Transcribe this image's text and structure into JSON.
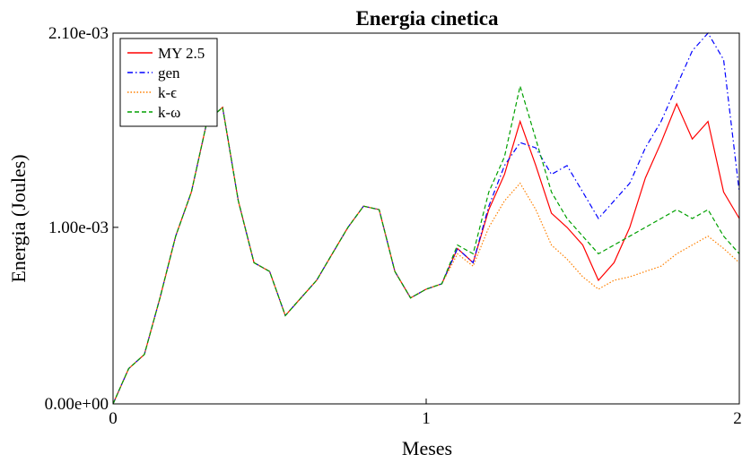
{
  "chart_data": {
    "type": "line",
    "title": "Energia cinetica",
    "xlabel": "Meses",
    "ylabel": "Energia (Joules)",
    "xlim": [
      0,
      2
    ],
    "ylim": [
      0,
      0.0021
    ],
    "xticks": [
      0,
      1,
      2
    ],
    "xtick_labels": [
      "0",
      "1",
      "2"
    ],
    "yticks": [
      0,
      0.001,
      0.0021
    ],
    "ytick_labels": [
      "0.00e+00",
      "1.00e-03",
      "2.10e-03"
    ],
    "grid": false,
    "legend_position": "top-left",
    "series": [
      {
        "name": "MY 2.5",
        "color": "#ff0000",
        "dash": "solid",
        "x": [
          0,
          0.05,
          0.1,
          0.15,
          0.2,
          0.25,
          0.3,
          0.35,
          0.4,
          0.45,
          0.5,
          0.55,
          0.6,
          0.65,
          0.7,
          0.75,
          0.8,
          0.85,
          0.9,
          0.95,
          1.0,
          1.05,
          1.1,
          1.15,
          1.2,
          1.25,
          1.3,
          1.35,
          1.4,
          1.45,
          1.5,
          1.55,
          1.6,
          1.65,
          1.7,
          1.75,
          1.8,
          1.85,
          1.9,
          1.95,
          2.0
        ],
        "y": [
          0.0,
          0.0002,
          0.00028,
          0.0006,
          0.00095,
          0.0012,
          0.0016,
          0.00168,
          0.00115,
          0.0008,
          0.00075,
          0.0005,
          0.0006,
          0.0007,
          0.00085,
          0.001,
          0.00112,
          0.0011,
          0.00075,
          0.0006,
          0.00065,
          0.00068,
          0.00088,
          0.0008,
          0.0011,
          0.0013,
          0.0016,
          0.00135,
          0.00108,
          0.001,
          0.0009,
          0.0007,
          0.0008,
          0.001,
          0.00128,
          0.00148,
          0.0017,
          0.0015,
          0.0016,
          0.0012,
          0.00105
        ]
      },
      {
        "name": "gen",
        "color": "#0000ff",
        "dash": "dashdot",
        "x": [
          0,
          0.05,
          0.1,
          0.15,
          0.2,
          0.25,
          0.3,
          0.35,
          0.4,
          0.45,
          0.5,
          0.55,
          0.6,
          0.65,
          0.7,
          0.75,
          0.8,
          0.85,
          0.9,
          0.95,
          1.0,
          1.05,
          1.1,
          1.15,
          1.2,
          1.25,
          1.3,
          1.35,
          1.4,
          1.45,
          1.5,
          1.55,
          1.6,
          1.65,
          1.7,
          1.75,
          1.8,
          1.85,
          1.9,
          1.95,
          2.0
        ],
        "y": [
          0.0,
          0.0002,
          0.00028,
          0.0006,
          0.00095,
          0.0012,
          0.0016,
          0.00168,
          0.00115,
          0.0008,
          0.00075,
          0.0005,
          0.0006,
          0.0007,
          0.00085,
          0.001,
          0.00112,
          0.0011,
          0.00075,
          0.0006,
          0.00065,
          0.00068,
          0.00088,
          0.0008,
          0.00112,
          0.00135,
          0.00148,
          0.00145,
          0.0013,
          0.00135,
          0.0012,
          0.00105,
          0.00115,
          0.00125,
          0.00145,
          0.0016,
          0.0018,
          0.002,
          0.0021,
          0.00195,
          0.0012
        ]
      },
      {
        "name": "k-ϵ",
        "color": "#ff8000",
        "dash": "dotted",
        "x": [
          0,
          0.05,
          0.1,
          0.15,
          0.2,
          0.25,
          0.3,
          0.35,
          0.4,
          0.45,
          0.5,
          0.55,
          0.6,
          0.65,
          0.7,
          0.75,
          0.8,
          0.85,
          0.9,
          0.95,
          1.0,
          1.05,
          1.1,
          1.15,
          1.2,
          1.25,
          1.3,
          1.35,
          1.4,
          1.45,
          1.5,
          1.55,
          1.6,
          1.65,
          1.7,
          1.75,
          1.8,
          1.85,
          1.9,
          1.95,
          2.0
        ],
        "y": [
          0.0,
          0.0002,
          0.00028,
          0.0006,
          0.00095,
          0.0012,
          0.0016,
          0.00168,
          0.00115,
          0.0008,
          0.00075,
          0.0005,
          0.0006,
          0.0007,
          0.00085,
          0.001,
          0.00112,
          0.0011,
          0.00075,
          0.0006,
          0.00065,
          0.00068,
          0.00085,
          0.00078,
          0.001,
          0.00115,
          0.00125,
          0.0011,
          0.0009,
          0.00082,
          0.00072,
          0.00065,
          0.0007,
          0.00072,
          0.00075,
          0.00078,
          0.00085,
          0.0009,
          0.00095,
          0.00088,
          0.0008
        ]
      },
      {
        "name": "k-ω",
        "color": "#00a000",
        "dash": "dashed",
        "x": [
          0,
          0.05,
          0.1,
          0.15,
          0.2,
          0.25,
          0.3,
          0.35,
          0.4,
          0.45,
          0.5,
          0.55,
          0.6,
          0.65,
          0.7,
          0.75,
          0.8,
          0.85,
          0.9,
          0.95,
          1.0,
          1.05,
          1.1,
          1.15,
          1.2,
          1.25,
          1.3,
          1.35,
          1.4,
          1.45,
          1.5,
          1.55,
          1.6,
          1.65,
          1.7,
          1.75,
          1.8,
          1.85,
          1.9,
          1.95,
          2.0
        ],
        "y": [
          0.0,
          0.0002,
          0.00028,
          0.0006,
          0.00095,
          0.0012,
          0.0016,
          0.00168,
          0.00115,
          0.0008,
          0.00075,
          0.0005,
          0.0006,
          0.0007,
          0.00085,
          0.001,
          0.00112,
          0.0011,
          0.00075,
          0.0006,
          0.00065,
          0.00068,
          0.0009,
          0.00085,
          0.0012,
          0.0014,
          0.0018,
          0.0015,
          0.0012,
          0.00105,
          0.00095,
          0.00085,
          0.0009,
          0.00095,
          0.001,
          0.00105,
          0.0011,
          0.00105,
          0.0011,
          0.00095,
          0.00085
        ]
      }
    ]
  }
}
